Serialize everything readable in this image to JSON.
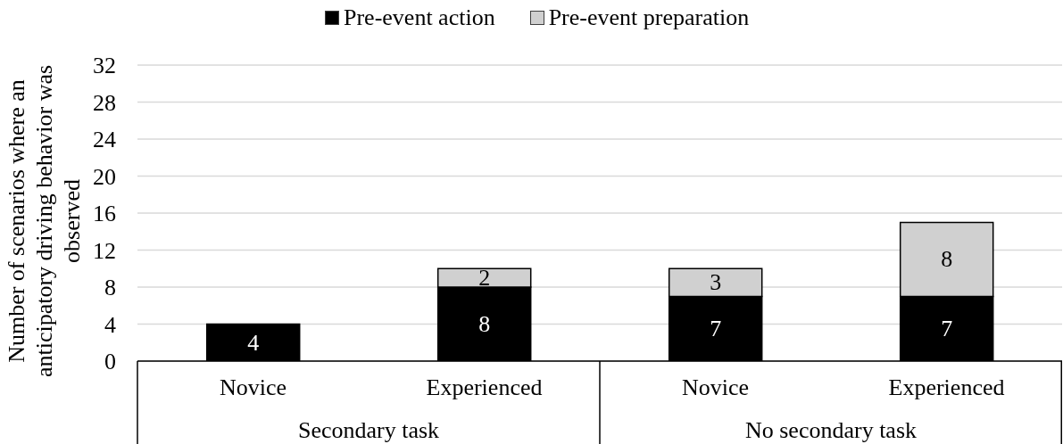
{
  "chart_data": {
    "type": "bar",
    "stacked": true,
    "ylabel": "Number of scenarios where an anticipatory driving behavior was observed",
    "categories": [
      "Novice",
      "Experienced",
      "Novice",
      "Experienced"
    ],
    "series": [
      {
        "name": "Pre-event action",
        "color": "#000000",
        "values": [
          4,
          8,
          7,
          7
        ]
      },
      {
        "name": "Pre-event preparation",
        "color": "#d0d0d0",
        "values": [
          null,
          2,
          3,
          8
        ]
      }
    ],
    "ylim": [
      0,
      32
    ],
    "yticks": [
      0,
      4,
      8,
      12,
      16,
      20,
      24,
      28,
      32
    ],
    "grid": "y",
    "legend": "top",
    "data_labels": true,
    "annotations": [
      "Secondary task",
      "No secondary task"
    ]
  }
}
